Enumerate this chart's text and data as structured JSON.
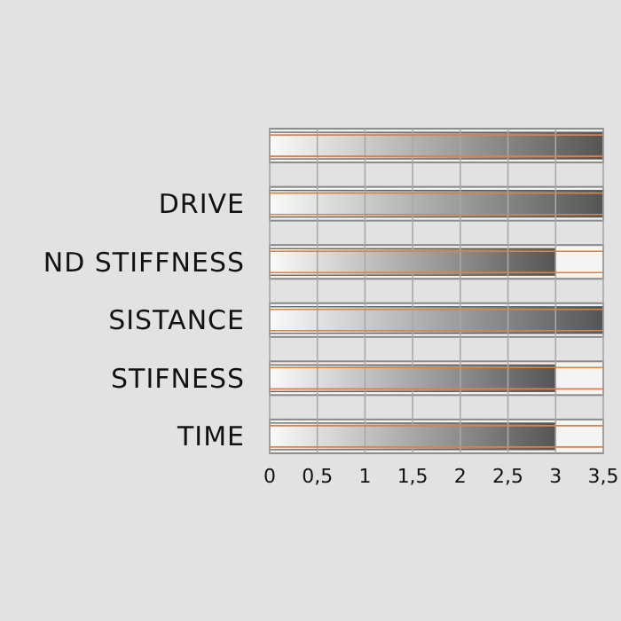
{
  "chart_data": {
    "type": "bar",
    "orientation": "horizontal",
    "categories": [
      null,
      "DRIVE",
      "ND STIFFNESS",
      "SISTANCE",
      "STIFNESS",
      "TIME"
    ],
    "values": [
      3.5,
      3.5,
      3,
      3.5,
      3,
      3
    ],
    "color": "#555555",
    "xlim": [
      0,
      3.5
    ],
    "xticks": [
      0,
      {
        "value": 0.5,
        "label": "0,5"
      },
      1,
      {
        "value": 1.5,
        "label": "1,5"
      },
      2,
      {
        "value": 2.5,
        "label": "2,5"
      },
      3,
      {
        "value": 3.5,
        "label": "3,5"
      }
    ],
    "grid": "x"
  }
}
